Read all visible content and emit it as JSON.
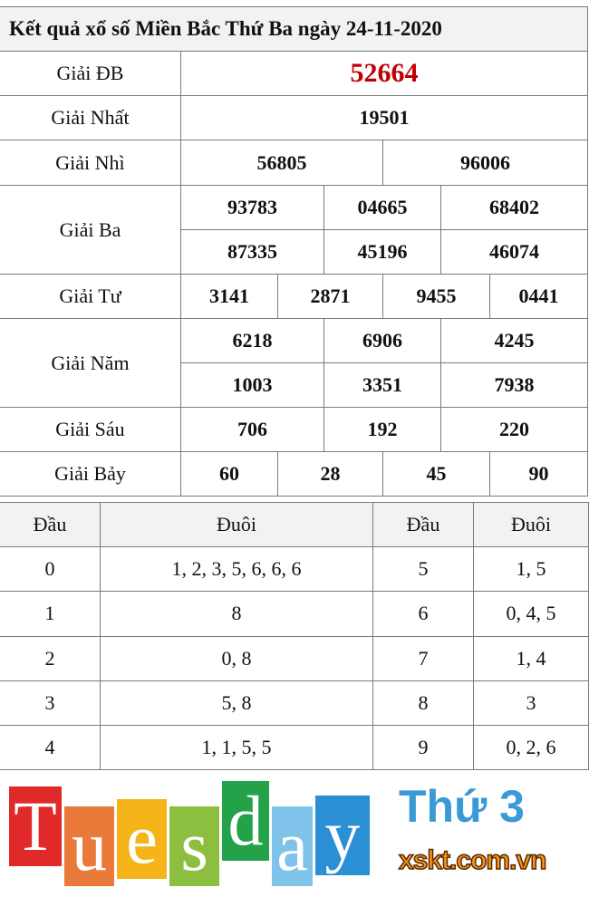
{
  "title": "Kết quả xổ số Miền Bắc Thứ Ba ngày 24-11-2020",
  "prizes": {
    "db": {
      "label": "Giải ĐB",
      "values": [
        "52664"
      ]
    },
    "nhat": {
      "label": "Giải Nhất",
      "values": [
        "19501"
      ]
    },
    "nhi": {
      "label": "Giải Nhì",
      "values": [
        "56805",
        "96006"
      ]
    },
    "ba": {
      "label": "Giải Ba",
      "values": [
        "93783",
        "04665",
        "68402",
        "87335",
        "45196",
        "46074"
      ]
    },
    "tu": {
      "label": "Giải Tư",
      "values": [
        "3141",
        "2871",
        "9455",
        "0441"
      ]
    },
    "nam": {
      "label": "Giải Năm",
      "values": [
        "6218",
        "6906",
        "4245",
        "1003",
        "3351",
        "7938"
      ]
    },
    "sau": {
      "label": "Giải Sáu",
      "values": [
        "706",
        "192",
        "220"
      ]
    },
    "bay": {
      "label": "Giải Bảy",
      "values": [
        "60",
        "28",
        "45",
        "90"
      ]
    }
  },
  "loto": {
    "headers": [
      "Đầu",
      "Đuôi",
      "Đầu",
      "Đuôi"
    ],
    "rows": [
      [
        "0",
        "1, 2, 3, 5, 6, 6, 6",
        "5",
        "1, 5"
      ],
      [
        "1",
        "8",
        "6",
        "0, 4, 5"
      ],
      [
        "2",
        "0, 8",
        "7",
        "1, 4"
      ],
      [
        "3",
        "5, 8",
        "8",
        "3"
      ],
      [
        "4",
        "1, 1, 5, 5",
        "9",
        "0, 2, 6"
      ]
    ]
  },
  "overlay": {
    "word": "Tuesday",
    "subtitle": "Thứ 3",
    "brand": "xskt.com.vn",
    "colors": [
      "#e02a2a",
      "#ea7a3a",
      "#f4b41a",
      "#8cbf3f",
      "#24a24a",
      "#7fc3ea",
      "#2b8fd6"
    ]
  },
  "colors": {
    "special_prize": "#c00000",
    "header_bg": "#f2f2f2",
    "border": "#7a7a7a"
  }
}
